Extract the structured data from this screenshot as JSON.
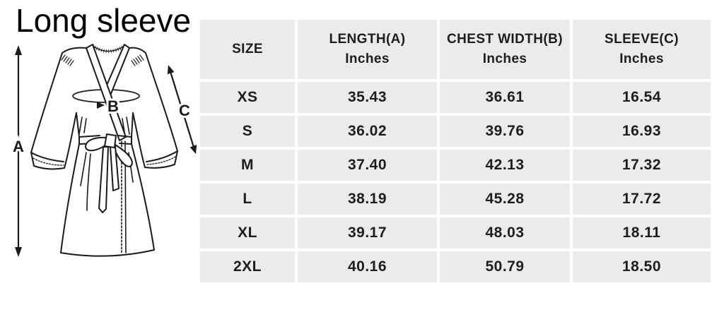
{
  "chart_data": {
    "type": "table",
    "title": "Long sleeve",
    "columns": [
      {
        "label": "SIZE",
        "unit": ""
      },
      {
        "label": "LENGTH(A)",
        "unit": "Inches"
      },
      {
        "label": "CHEST WIDTH(B)",
        "unit": "Inches"
      },
      {
        "label": "SLEEVE(C)",
        "unit": "Inches"
      }
    ],
    "rows": [
      [
        "XS",
        "35.43",
        "36.61",
        "16.54"
      ],
      [
        "S",
        "36.02",
        "39.76",
        "16.93"
      ],
      [
        "M",
        "37.40",
        "42.13",
        "17.32"
      ],
      [
        "L",
        "38.19",
        "45.28",
        "17.72"
      ],
      [
        "XL",
        "39.17",
        "48.03",
        "18.11"
      ],
      [
        "2XL",
        "40.16",
        "50.79",
        "18.50"
      ]
    ]
  },
  "diagram": {
    "label_a": "A",
    "label_b": "B",
    "label_c": "C"
  },
  "colors": {
    "cell_bg": "#ebebeb",
    "table_text": "#1d1d1d",
    "line_art": "#1a1a1a",
    "background": "#ffffff"
  }
}
